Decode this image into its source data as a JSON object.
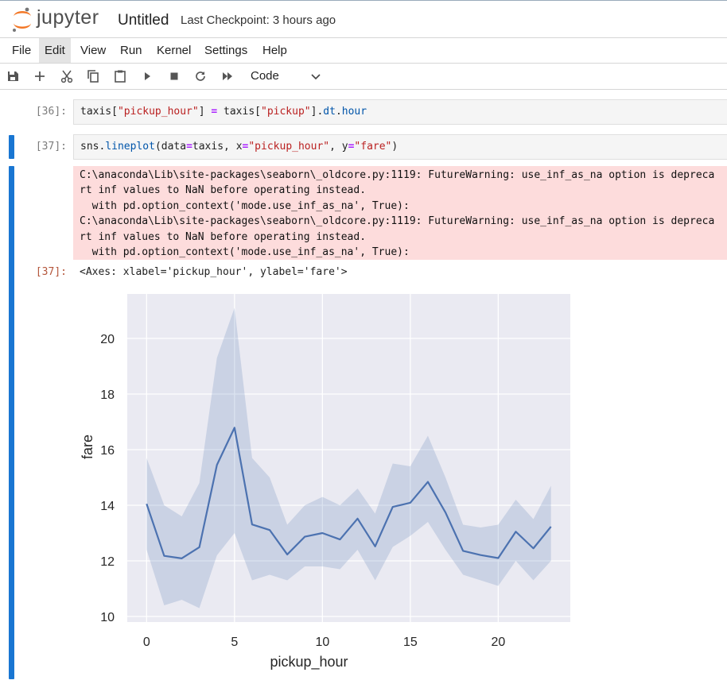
{
  "header": {
    "logo_text": "jupyter",
    "notebook_title": "Untitled",
    "checkpoint": "Last Checkpoint: 3 hours ago"
  },
  "menu": [
    "File",
    "Edit",
    "View",
    "Run",
    "Kernel",
    "Settings",
    "Help"
  ],
  "toolbar": {
    "icons": [
      "save-icon",
      "add-cell-icon",
      "cut-icon",
      "copy-icon",
      "paste-icon",
      "run-icon",
      "stop-icon",
      "restart-icon",
      "run-all-icon"
    ],
    "cell_type": "Code"
  },
  "cells": [
    {
      "prompt": "[36]:",
      "code": "taxis[\"pickup_hour\"] = taxis[\"pickup\"].dt.hour"
    },
    {
      "prompt": "[37]:",
      "code": "sns.lineplot(data=taxis, x=\"pickup_hour\", y=\"fare\")",
      "stderr": [
        "C:\\anaconda\\Lib\\site-packages\\seaborn\\_oldcore.py:1119: FutureWarning: use_inf_as_na option is depreca",
        "rt inf values to NaN before operating instead.",
        "  with pd.option_context('mode.use_inf_as_na', True):",
        "C:\\anaconda\\Lib\\site-packages\\seaborn\\_oldcore.py:1119: FutureWarning: use_inf_as_na option is depreca",
        "rt inf values to NaN before operating instead.",
        "  with pd.option_context('mode.use_inf_as_na', True):"
      ],
      "output_prompt": "[37]:",
      "output_text": "<Axes: xlabel='pickup_hour', ylabel='fare'>"
    }
  ],
  "colors": {
    "accent": "#1976d2",
    "stderr_bg": "#fddcdc",
    "plot_bg": "#eaeaf2",
    "line": "#4c72b0"
  },
  "chart_data": {
    "type": "line",
    "xlabel": "pickup_hour",
    "ylabel": "fare",
    "xlim": [
      -1.1,
      24.1
    ],
    "ylim": [
      9.8,
      21.6
    ],
    "xticks": [
      0,
      5,
      10,
      15,
      20
    ],
    "yticks": [
      10,
      12,
      14,
      16,
      18,
      20
    ],
    "grid": true,
    "x": [
      0,
      1,
      2,
      3,
      4,
      5,
      6,
      7,
      8,
      9,
      10,
      11,
      12,
      13,
      14,
      15,
      16,
      17,
      18,
      19,
      20,
      21,
      22,
      23
    ],
    "y": [
      14.05,
      12.18,
      12.09,
      12.49,
      15.45,
      16.79,
      13.31,
      13.11,
      12.23,
      12.87,
      13.0,
      12.77,
      13.52,
      12.52,
      13.94,
      14.09,
      14.84,
      13.74,
      12.36,
      12.21,
      12.1,
      13.05,
      12.45,
      13.23
    ],
    "ci_lower": [
      12.4,
      10.4,
      10.6,
      10.3,
      12.2,
      13.0,
      11.3,
      11.5,
      11.3,
      11.8,
      11.8,
      11.7,
      12.4,
      11.3,
      12.5,
      12.9,
      13.4,
      12.4,
      11.5,
      11.3,
      11.1,
      12.0,
      11.3,
      12.0
    ],
    "ci_upper": [
      15.7,
      14.0,
      13.6,
      14.8,
      19.3,
      21.1,
      15.7,
      15.0,
      13.3,
      14.0,
      14.3,
      14.0,
      14.6,
      13.7,
      15.5,
      15.4,
      16.5,
      15.0,
      13.3,
      13.2,
      13.3,
      14.2,
      13.5,
      14.7
    ]
  }
}
